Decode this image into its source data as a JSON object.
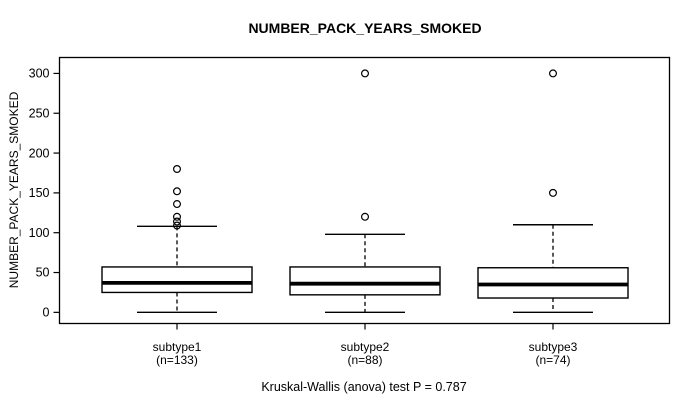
{
  "chart_data": {
    "type": "boxplot",
    "title": "NUMBER_PACK_YEARS_SMOKED",
    "ylabel": "NUMBER_PACK_YEARS_SMOKED",
    "xlabel": "",
    "caption": "Kruskal-Wallis (anova) test P = 0.787",
    "p_value": 0.787,
    "yticks": [
      0,
      50,
      100,
      150,
      200,
      250,
      300
    ],
    "ylim": [
      -14,
      320
    ],
    "grid": false,
    "legend": "none",
    "groups": [
      {
        "label": "subtype1",
        "n_label": "(n=133)",
        "n": 133,
        "whisker_low": 0,
        "q1": 25,
        "median": 37,
        "q3": 57,
        "whisker_high": 108,
        "outliers": [
          109,
          114,
          120,
          136,
          152,
          180
        ]
      },
      {
        "label": "subtype2",
        "n_label": "(n=88)",
        "n": 88,
        "whisker_low": 0,
        "q1": 22,
        "median": 36,
        "q3": 57,
        "whisker_high": 98,
        "outliers": [
          120,
          300
        ]
      },
      {
        "label": "subtype3",
        "n_label": "(n=74)",
        "n": 74,
        "whisker_low": 0,
        "q1": 18,
        "median": 35,
        "q3": 56,
        "whisker_high": 110,
        "outliers": [
          150,
          300
        ]
      }
    ],
    "colors": {
      "line": "#000000",
      "box_fill": "#ffffff",
      "background": "#ffffff",
      "text": "#000000"
    }
  }
}
